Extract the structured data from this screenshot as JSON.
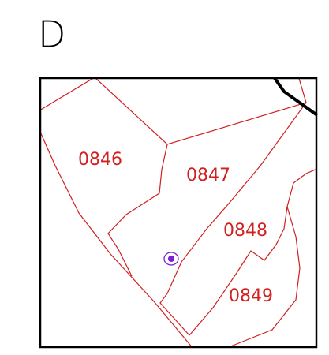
{
  "title": "D",
  "parcels": [
    {
      "label": "0846"
    },
    {
      "label": "0847"
    },
    {
      "label": "0848"
    },
    {
      "label": "0849"
    }
  ]
}
